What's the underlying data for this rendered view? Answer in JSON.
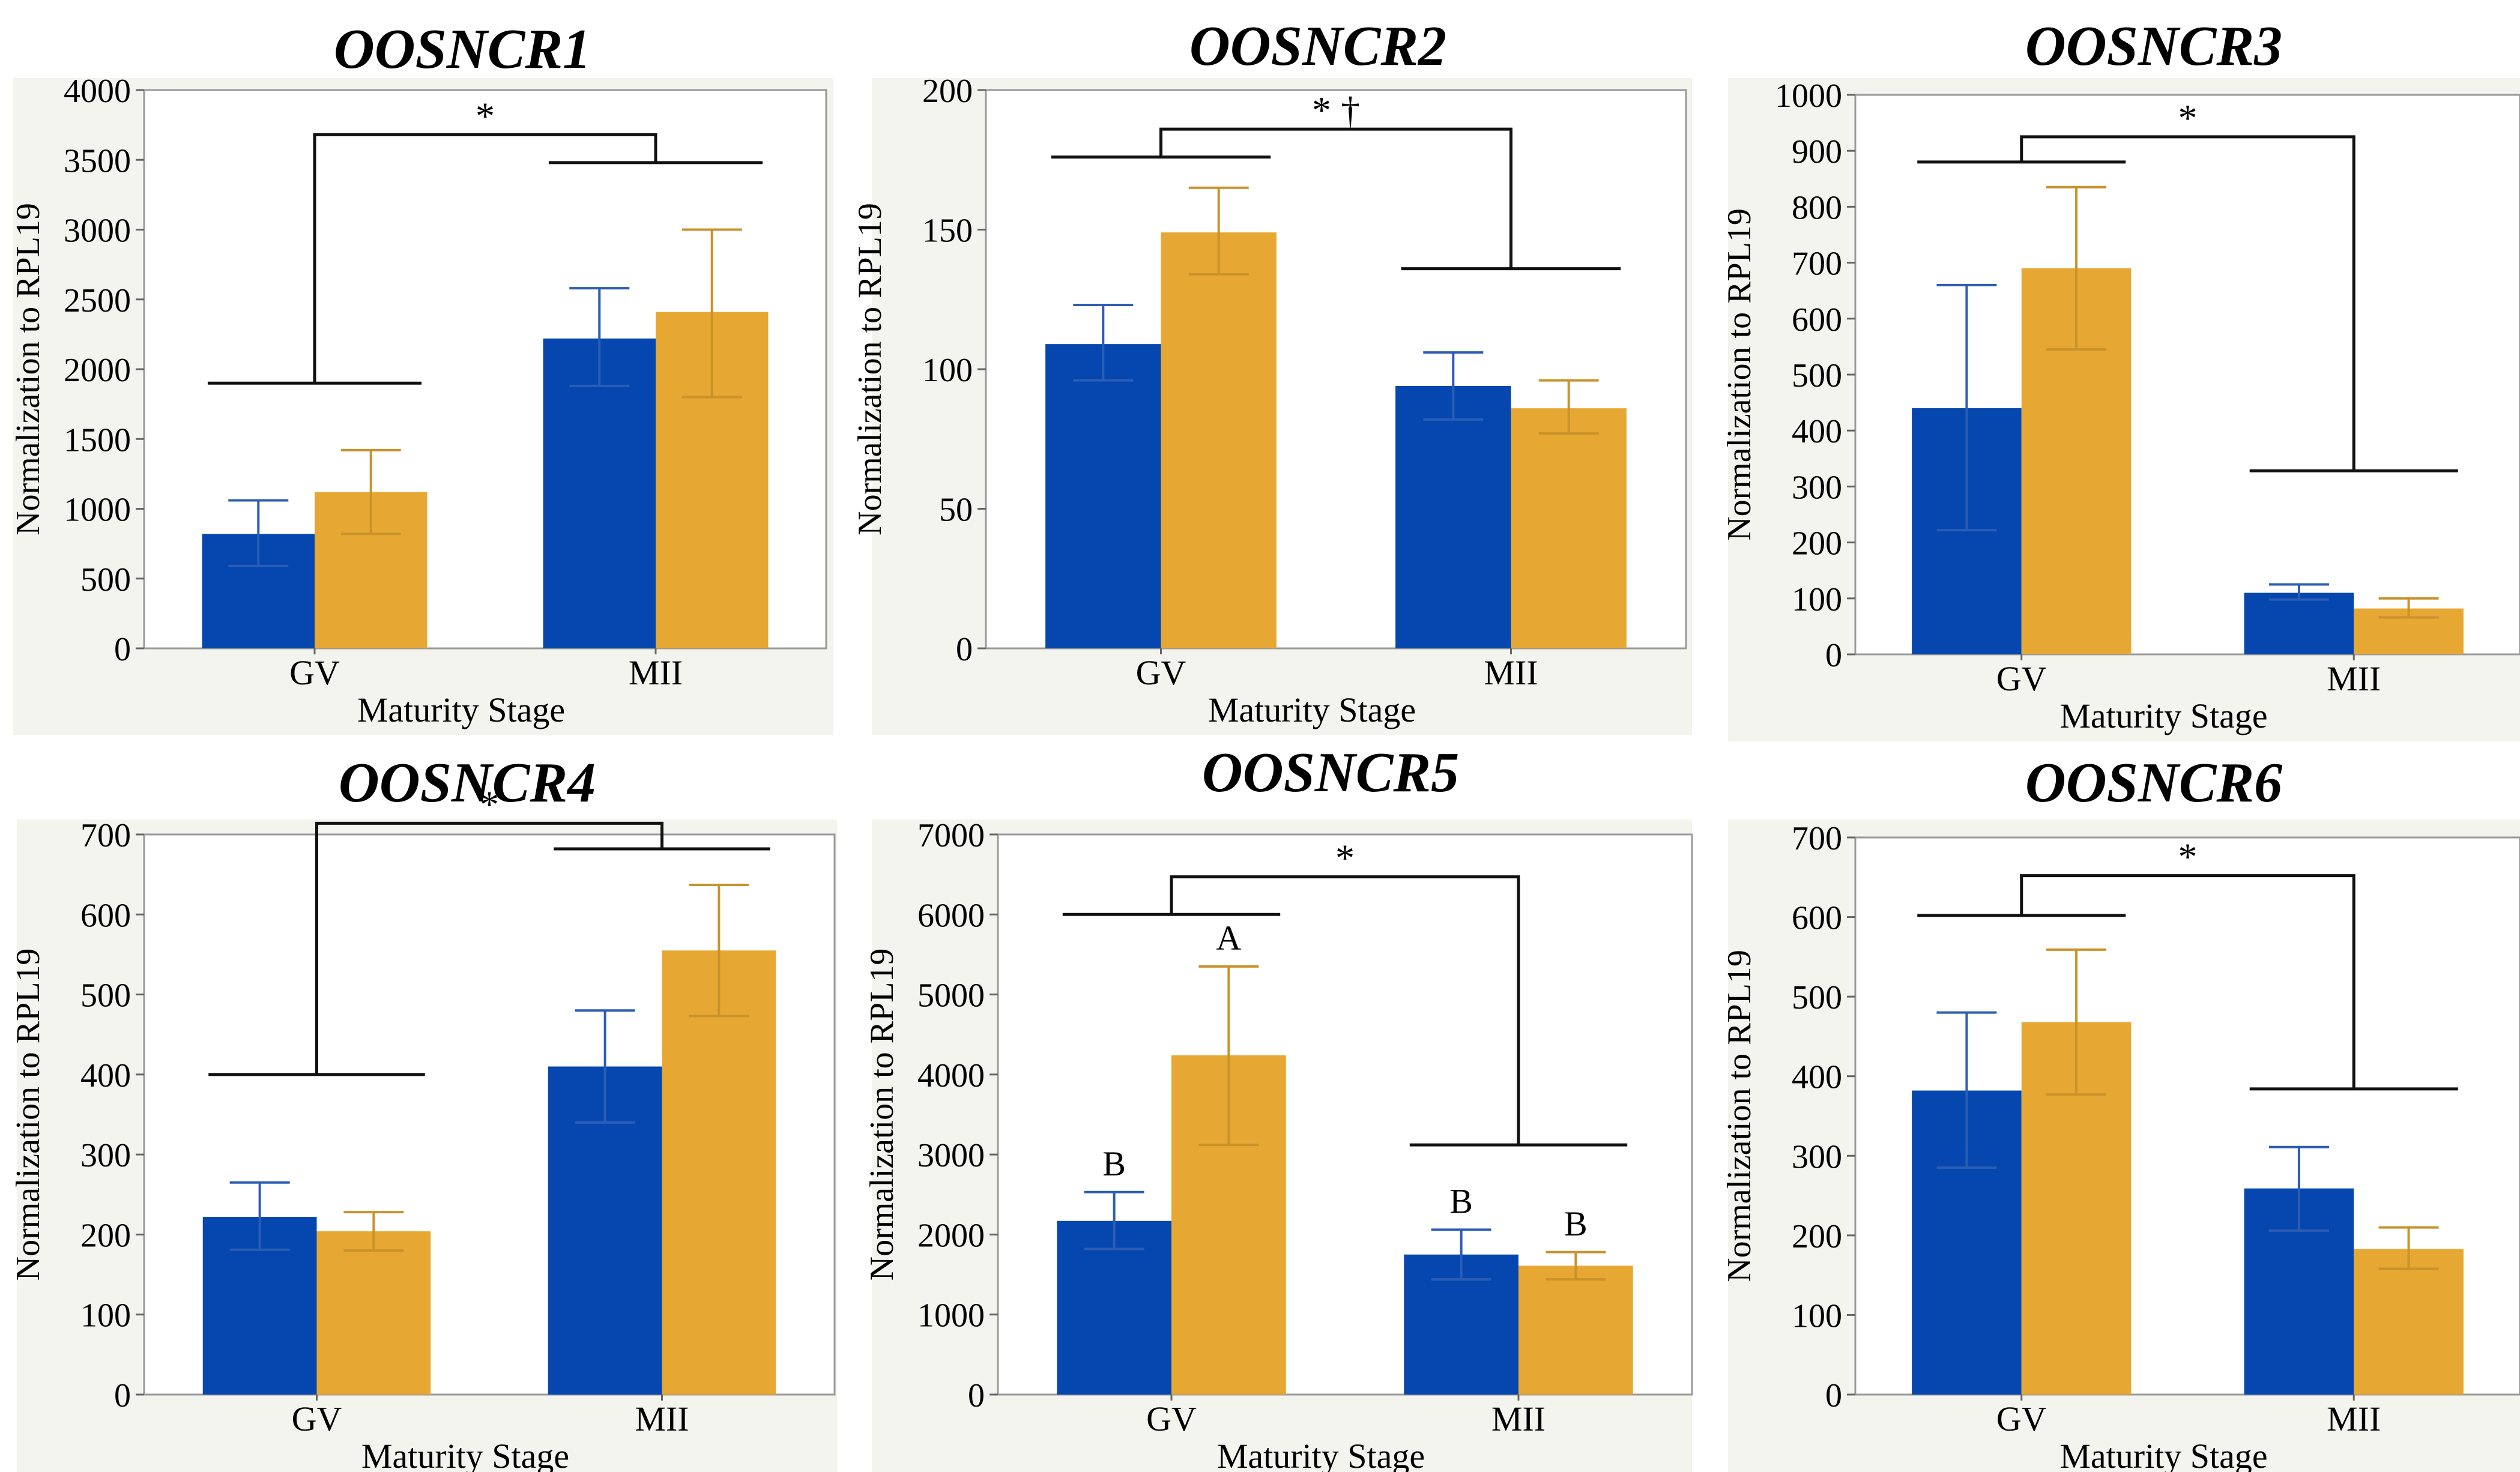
{
  "colors": {
    "series_1": "#0547AE",
    "series_2": "#E6A833",
    "panel_bg": "#F4F4EE",
    "plot_bg": "#FFFFFF",
    "axis": "#999999",
    "bracket": "#111111"
  },
  "chart_data": [
    {
      "type": "bar",
      "title": "OOSNCR1",
      "xlabel": "Maturity Stage",
      "ylabel": "Normalization to RPL19",
      "categories": [
        "GV",
        "MII"
      ],
      "ylim": [
        0,
        4000
      ],
      "yticks": [
        0,
        500,
        1000,
        1500,
        2000,
        2500,
        3000,
        3500,
        4000
      ],
      "series": [
        {
          "values": [
            820,
            2220
          ],
          "err_low": [
            590,
            1880
          ],
          "err_high": [
            1060,
            2580
          ]
        },
        {
          "values": [
            1120,
            2410
          ],
          "err_low": [
            820,
            1800
          ],
          "err_high": [
            1420,
            3000
          ]
        }
      ],
      "bracket": {
        "label": "*",
        "left": {
          "group": 0,
          "y": 1900
        },
        "right": {
          "group": 1,
          "y": 3480
        },
        "top": 3680
      },
      "bar_labels": []
    },
    {
      "type": "bar",
      "title": "OOSNCR2",
      "xlabel": "Maturity Stage",
      "ylabel": "Normalization to RPL19",
      "categories": [
        "GV",
        "MII"
      ],
      "ylim": [
        0,
        200
      ],
      "yticks": [
        0,
        50,
        100,
        150,
        200
      ],
      "series": [
        {
          "values": [
            109,
            94
          ],
          "err_low": [
            96,
            82
          ],
          "err_high": [
            123,
            106
          ]
        },
        {
          "values": [
            149,
            86
          ],
          "err_low": [
            134,
            77
          ],
          "err_high": [
            165,
            96
          ]
        }
      ],
      "bracket": {
        "label": "* †",
        "left": {
          "group": 0,
          "y": 176
        },
        "right": {
          "group": 1,
          "y": 136
        },
        "top": 186
      },
      "bar_labels": []
    },
    {
      "type": "bar",
      "title": "OOSNCR3",
      "xlabel": "Maturity Stage",
      "ylabel": "Normalization to RPL19",
      "categories": [
        "GV",
        "MII"
      ],
      "ylim": [
        0,
        1000
      ],
      "yticks": [
        0,
        100,
        200,
        300,
        400,
        500,
        600,
        700,
        800,
        900,
        1000
      ],
      "series": [
        {
          "values": [
            440,
            110
          ],
          "err_low": [
            222,
            98
          ],
          "err_high": [
            660,
            125
          ]
        },
        {
          "values": [
            690,
            82
          ],
          "err_low": [
            545,
            66
          ],
          "err_high": [
            835,
            100
          ]
        }
      ],
      "bracket": {
        "label": "*",
        "left": {
          "group": 0,
          "y": 880
        },
        "right": {
          "group": 1,
          "y": 328
        },
        "top": 925
      },
      "bar_labels": []
    },
    {
      "type": "bar",
      "title": "OOSNCR4",
      "xlabel": "Maturity Stage",
      "ylabel": "Normalization to RPL19",
      "categories": [
        "GV",
        "MII"
      ],
      "ylim": [
        0,
        700
      ],
      "yticks": [
        0,
        100,
        200,
        300,
        400,
        500,
        600,
        700
      ],
      "series": [
        {
          "values": [
            222,
            410
          ],
          "err_low": [
            181,
            340
          ],
          "err_high": [
            265,
            480
          ]
        },
        {
          "values": [
            204,
            555
          ],
          "err_low": [
            180,
            473
          ],
          "err_high": [
            228,
            637
          ]
        }
      ],
      "bracket": {
        "label": "*",
        "left": {
          "group": 0,
          "y": 400
        },
        "right": {
          "group": 1,
          "y": 682
        },
        "top": 714
      },
      "bar_labels": []
    },
    {
      "type": "bar",
      "title": "OOSNCR5",
      "xlabel": "Maturity Stage",
      "ylabel": "Normalization to RPL19",
      "categories": [
        "GV",
        "MII"
      ],
      "ylim": [
        0,
        7000
      ],
      "yticks": [
        0,
        1000,
        2000,
        3000,
        4000,
        5000,
        6000,
        7000
      ],
      "series": [
        {
          "values": [
            2170,
            1750
          ],
          "err_low": [
            1820,
            1440
          ],
          "err_high": [
            2530,
            2060
          ]
        },
        {
          "values": [
            4240,
            1610
          ],
          "err_low": [
            3120,
            1440
          ],
          "err_high": [
            5350,
            1780
          ]
        }
      ],
      "bracket": {
        "label": "*",
        "left": {
          "group": 0,
          "y": 6000
        },
        "right": {
          "group": 1,
          "y": 3120
        },
        "top": 6470
      },
      "bar_labels": [
        {
          "series": 0,
          "group": 0,
          "text": "B"
        },
        {
          "series": 1,
          "group": 0,
          "text": "A"
        },
        {
          "series": 0,
          "group": 1,
          "text": "B"
        },
        {
          "series": 1,
          "group": 1,
          "text": "B"
        }
      ]
    },
    {
      "type": "bar",
      "title": "OOSNCR6",
      "xlabel": "Maturity Stage",
      "ylabel": "Normalization to RPL19",
      "categories": [
        "GV",
        "MII"
      ],
      "ylim": [
        0,
        700
      ],
      "yticks": [
        0,
        100,
        200,
        300,
        400,
        500,
        600,
        700
      ],
      "series": [
        {
          "values": [
            382,
            259
          ],
          "err_low": [
            285,
            206
          ],
          "err_high": [
            480,
            311
          ]
        },
        {
          "values": [
            468,
            183
          ],
          "err_low": [
            377,
            158
          ],
          "err_high": [
            559,
            210
          ]
        }
      ],
      "bracket": {
        "label": "*",
        "left": {
          "group": 0,
          "y": 602
        },
        "right": {
          "group": 1,
          "y": 384
        },
        "top": 652
      },
      "bar_labels": []
    }
  ]
}
